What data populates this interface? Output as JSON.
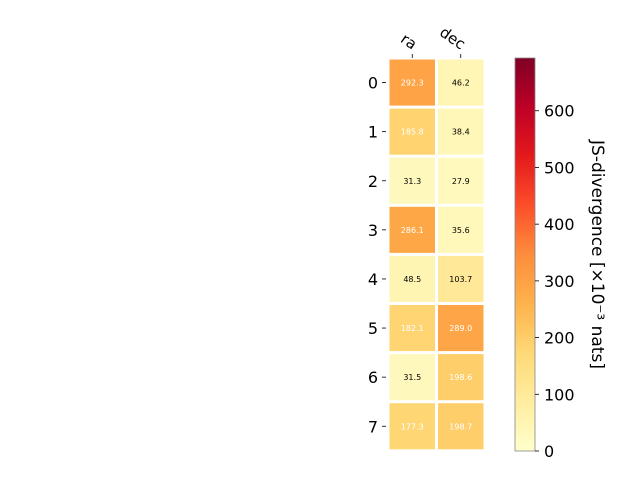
{
  "chart_data": {
    "type": "heatmap",
    "columns": [
      "ra",
      "dec"
    ],
    "rows": [
      "0",
      "1",
      "2",
      "3",
      "4",
      "5",
      "6",
      "7"
    ],
    "values": [
      [
        292.3,
        46.2
      ],
      [
        185.8,
        38.4
      ],
      [
        31.3,
        27.9
      ],
      [
        286.1,
        35.6
      ],
      [
        48.5,
        103.7
      ],
      [
        182.1,
        289.0
      ],
      [
        31.5,
        198.6
      ],
      [
        177.3,
        198.7
      ]
    ],
    "cell_labels": [
      [
        "292.3",
        "46.2"
      ],
      [
        "185.8",
        "38.4"
      ],
      [
        "31.3",
        "27.9"
      ],
      [
        "286.1",
        "35.6"
      ],
      [
        "48.5",
        "103.7"
      ],
      [
        "182.1",
        "289.0"
      ],
      [
        "31.5",
        "198.6"
      ],
      [
        "177.3",
        "198.7"
      ]
    ],
    "colorbar": {
      "label": "JS-divergence [×10⁻³ nats]",
      "range": [
        0,
        693
      ],
      "ticks": [
        0,
        100,
        200,
        300,
        400,
        500,
        600
      ],
      "colormap": "YlOrRd"
    },
    "grid": false
  }
}
